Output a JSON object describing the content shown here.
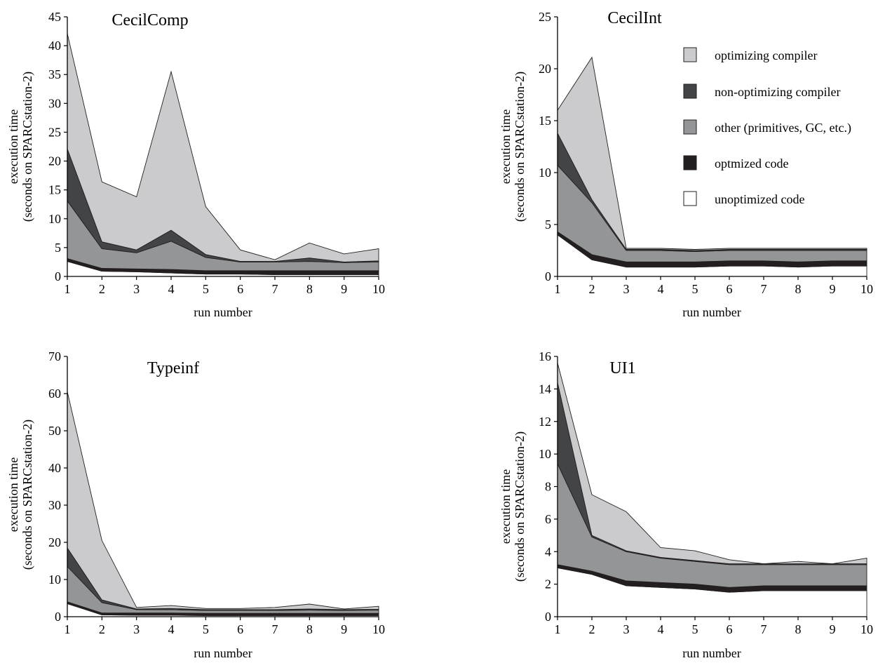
{
  "legend": {
    "items": [
      {
        "label": "optimizing compiler",
        "color": "#cbcbcd"
      },
      {
        "label": "non-optimizing compiler",
        "color": "#434446"
      },
      {
        "label": "other (primitives, GC, etc.)",
        "color": "#949597"
      },
      {
        "label": "optmized code",
        "color": "#231f20"
      },
      {
        "label": "unoptimized code",
        "color": "#ffffff"
      }
    ]
  },
  "chart_data": [
    {
      "type": "area",
      "stacked": true,
      "title": "CecilComp",
      "xlabel": "run number",
      "ylabel": "execution time",
      "ylabel2": "(seconds on SPARCstation-2)",
      "x": [
        1,
        2,
        3,
        4,
        5,
        6,
        7,
        8,
        9,
        10
      ],
      "ylim": [
        0,
        45
      ],
      "yticks": [
        0,
        5,
        10,
        15,
        20,
        25,
        30,
        35,
        40,
        45
      ],
      "series": [
        {
          "name": "unoptimized code",
          "color": "#ffffff",
          "values": [
            2.6,
            0.9,
            0.8,
            0.6,
            0.4,
            0.4,
            0.3,
            0.3,
            0.3,
            0.3
          ]
        },
        {
          "name": "optmized code",
          "color": "#231f20",
          "values": [
            0.5,
            0.5,
            0.5,
            0.6,
            0.6,
            0.6,
            0.7,
            0.7,
            0.7,
            0.7
          ]
        },
        {
          "name": "other (primitives, GC, etc.)",
          "color": "#949597",
          "values": [
            10.0,
            3.4,
            2.8,
            4.9,
            2.3,
            1.5,
            1.5,
            1.6,
            1.4,
            1.5
          ]
        },
        {
          "name": "non-optimizing compiler",
          "color": "#434446",
          "values": [
            9.0,
            1.2,
            0.5,
            1.9,
            0.5,
            0.1,
            0.1,
            0.6,
            0.1,
            0.2
          ]
        },
        {
          "name": "optimizing compiler",
          "color": "#cbcbcd",
          "values": [
            20.0,
            10.4,
            9.2,
            27.5,
            8.3,
            2.0,
            0.3,
            2.6,
            1.4,
            2.1
          ]
        }
      ]
    },
    {
      "type": "area",
      "stacked": true,
      "title": "CecilInt",
      "xlabel": "run number",
      "ylabel": "execution time",
      "ylabel2": "(seconds on SPARCstation-2)",
      "x": [
        1,
        2,
        3,
        4,
        5,
        6,
        7,
        8,
        9,
        10
      ],
      "ylim": [
        0,
        25
      ],
      "yticks": [
        0,
        5,
        10,
        15,
        20,
        25
      ],
      "series": [
        {
          "name": "unoptimized code",
          "color": "#ffffff",
          "values": [
            4.0,
            1.6,
            0.9,
            0.9,
            0.9,
            1.0,
            1.0,
            0.9,
            1.0,
            1.0
          ]
        },
        {
          "name": "optmized code",
          "color": "#231f20",
          "values": [
            0.3,
            0.5,
            0.5,
            0.5,
            0.5,
            0.5,
            0.5,
            0.5,
            0.5,
            0.5
          ]
        },
        {
          "name": "other (primitives, GC, etc.)",
          "color": "#949597",
          "values": [
            6.4,
            5.0,
            1.1,
            1.1,
            1.0,
            1.0,
            1.0,
            1.1,
            1.0,
            1.0
          ]
        },
        {
          "name": "non-optimizing compiler",
          "color": "#434446",
          "values": [
            3.1,
            0.3,
            0.1,
            0.1,
            0.1,
            0.1,
            0.1,
            0.1,
            0.1,
            0.1
          ]
        },
        {
          "name": "optimizing compiler",
          "color": "#cbcbcd",
          "values": [
            2.2,
            13.7,
            0.1,
            0.1,
            0.1,
            0.1,
            0.1,
            0.1,
            0.1,
            0.1
          ]
        }
      ]
    },
    {
      "type": "area",
      "stacked": true,
      "title": "Typeinf",
      "xlabel": "run number",
      "ylabel": "execution time",
      "ylabel2": "(seconds on SPARCstation-2)",
      "x": [
        1,
        2,
        3,
        4,
        5,
        6,
        7,
        8,
        9,
        10
      ],
      "ylim": [
        0,
        70
      ],
      "yticks": [
        0,
        10,
        20,
        30,
        40,
        50,
        60,
        70
      ],
      "series": [
        {
          "name": "unoptimized code",
          "color": "#ffffff",
          "values": [
            3.5,
            0.5,
            0.4,
            0.4,
            0.3,
            0.3,
            0.3,
            0.3,
            0.3,
            0.3
          ]
        },
        {
          "name": "optmized code",
          "color": "#231f20",
          "values": [
            0.5,
            0.5,
            0.6,
            0.6,
            0.6,
            0.6,
            0.6,
            0.6,
            0.6,
            0.6
          ]
        },
        {
          "name": "other (primitives, GC, etc.)",
          "color": "#949597",
          "values": [
            9.5,
            2.8,
            0.9,
            0.9,
            0.8,
            0.8,
            0.8,
            0.9,
            0.8,
            0.9
          ]
        },
        {
          "name": "non-optimizing compiler",
          "color": "#434446",
          "values": [
            5.0,
            0.7,
            0.2,
            0.3,
            0.2,
            0.2,
            0.2,
            0.3,
            0.2,
            0.2
          ]
        },
        {
          "name": "optimizing compiler",
          "color": "#cbcbcd",
          "values": [
            42.0,
            16.0,
            0.4,
            0.8,
            0.3,
            0.3,
            0.6,
            1.3,
            0.2,
            0.8
          ]
        }
      ]
    },
    {
      "type": "area",
      "stacked": true,
      "title": "UI1",
      "xlabel": "run number",
      "ylabel": "execution time",
      "ylabel2": "(seconds on SPARCstation-2)",
      "x": [
        1,
        2,
        3,
        4,
        5,
        6,
        7,
        8,
        9,
        10
      ],
      "ylim": [
        0,
        16
      ],
      "yticks": [
        0,
        2,
        4,
        6,
        8,
        10,
        12,
        14,
        16
      ],
      "series": [
        {
          "name": "unoptimized code",
          "color": "#ffffff",
          "values": [
            3.0,
            2.6,
            1.9,
            1.8,
            1.7,
            1.5,
            1.6,
            1.6,
            1.6,
            1.6
          ]
        },
        {
          "name": "optmized code",
          "color": "#231f20",
          "values": [
            0.2,
            0.2,
            0.3,
            0.3,
            0.3,
            0.3,
            0.3,
            0.3,
            0.3,
            0.3
          ]
        },
        {
          "name": "other (primitives, GC, etc.)",
          "color": "#949597",
          "values": [
            6.2,
            2.1,
            1.8,
            1.5,
            1.4,
            1.4,
            1.3,
            1.3,
            1.3,
            1.3
          ]
        },
        {
          "name": "non-optimizing compiler",
          "color": "#434446",
          "values": [
            5.0,
            0.1,
            0.05,
            0.05,
            0.05,
            0.05,
            0.05,
            0.05,
            0.05,
            0.05
          ]
        },
        {
          "name": "optimizing compiler",
          "color": "#cbcbcd",
          "values": [
            1.2,
            2.5,
            2.4,
            0.6,
            0.6,
            0.25,
            0.0,
            0.15,
            0.0,
            0.35
          ]
        }
      ]
    }
  ]
}
